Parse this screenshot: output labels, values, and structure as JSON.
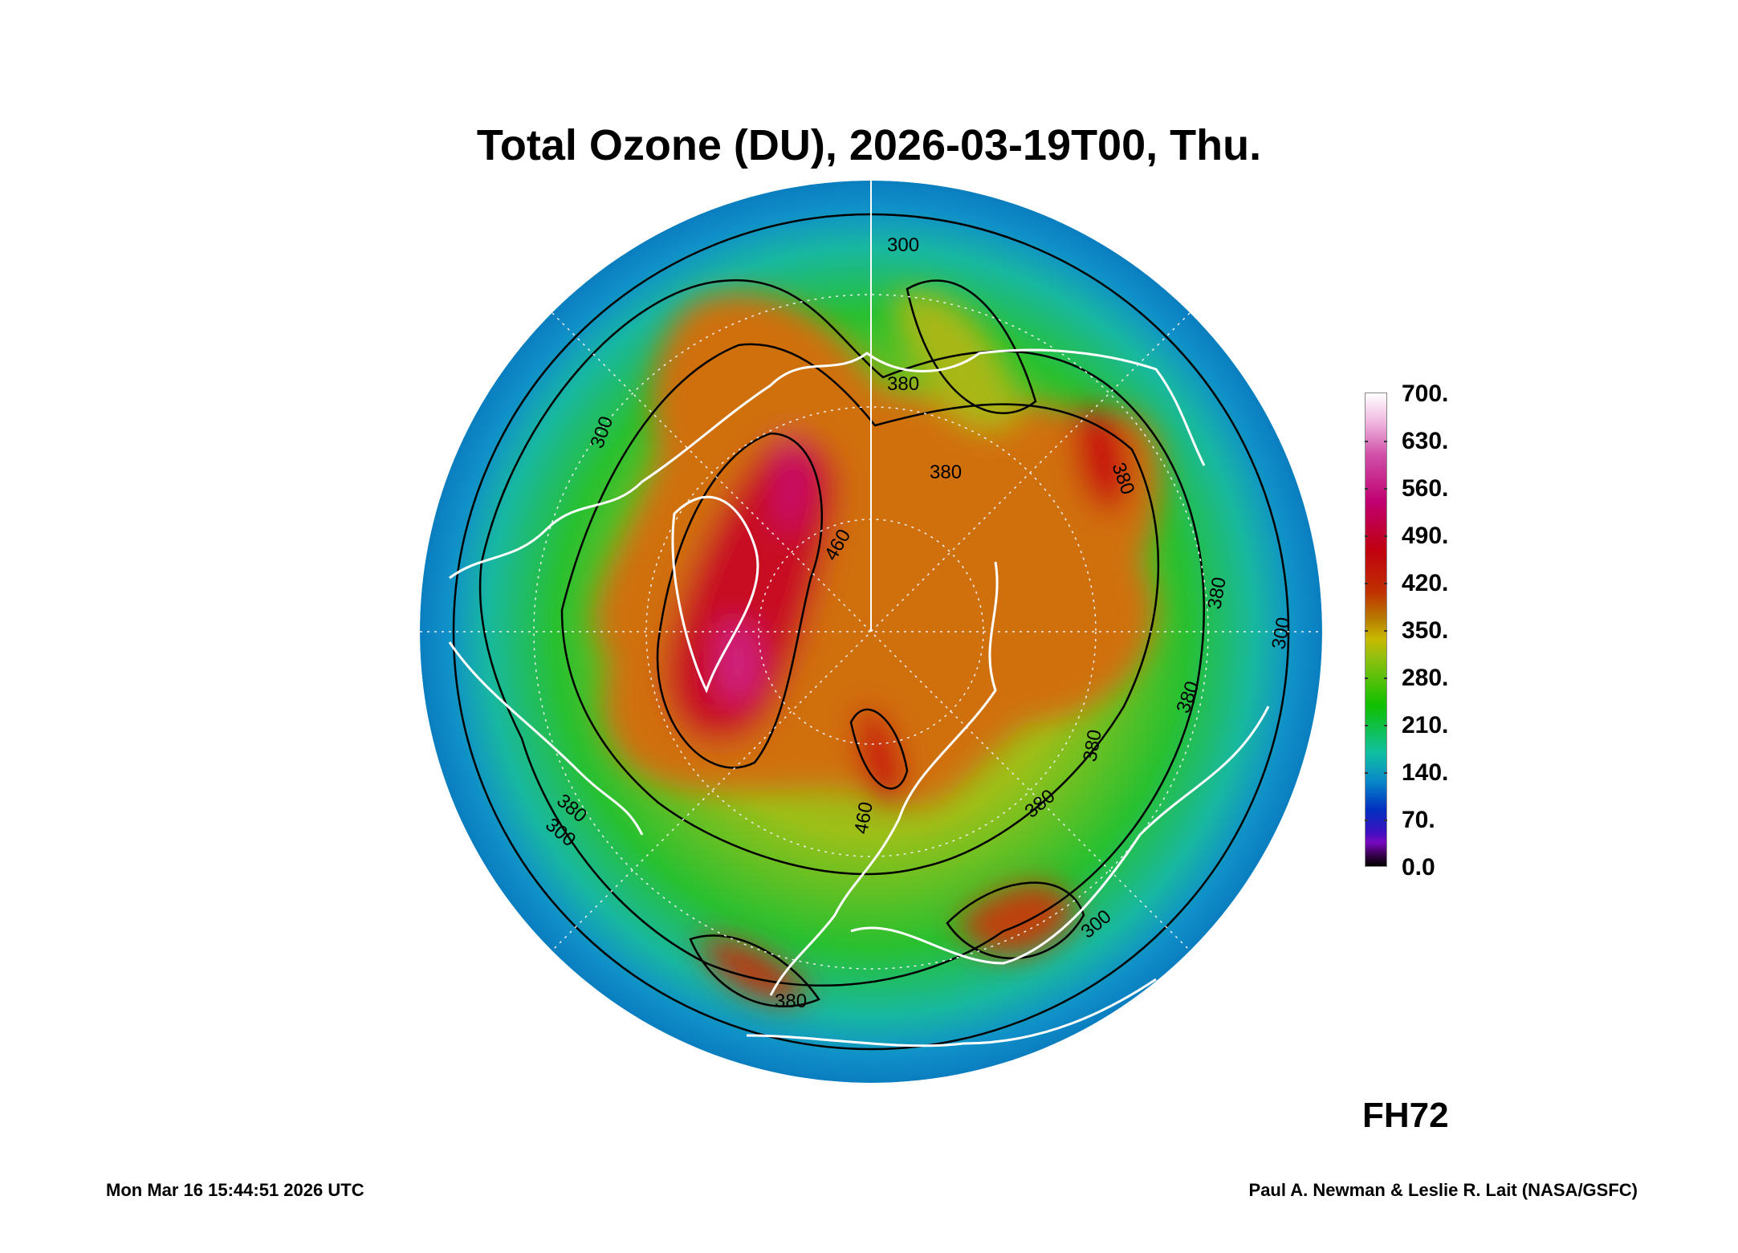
{
  "title": "Total Ozone (DU), 2026-03-19T00, Thu.",
  "forecast_hour": "FH72",
  "timestamp": "Mon Mar 16 15:44:51 2026 UTC",
  "credit": "Paul A. Newman & Leslie R. Lait (NASA/GSFC)",
  "contour_labels": [
    "300",
    "380",
    "380",
    "460",
    "380",
    "300",
    "380",
    "300",
    "380",
    "460",
    "380",
    "380",
    "380",
    "300",
    "380",
    "300"
  ],
  "chart_data": {
    "type": "heatmap",
    "title": "Total Ozone (DU), 2026-03-19T00, Thu.",
    "projection": "north polar stereographic",
    "units": "DU",
    "colorbar": {
      "range": [
        0,
        700
      ],
      "tick_labels": [
        "700.",
        "630.",
        "560.",
        "490.",
        "420.",
        "350.",
        "280.",
        "210.",
        "140.",
        "70.",
        "0.0"
      ],
      "colors": [
        "#ffffff",
        "#d050a8",
        "#c00070",
        "#c00010",
        "#c06000",
        "#c8b800",
        "#10c000",
        "#10c0a0",
        "#0030c0",
        "#7808c0",
        "#000000"
      ]
    },
    "contour_levels": [
      300,
      380,
      460
    ]
  }
}
